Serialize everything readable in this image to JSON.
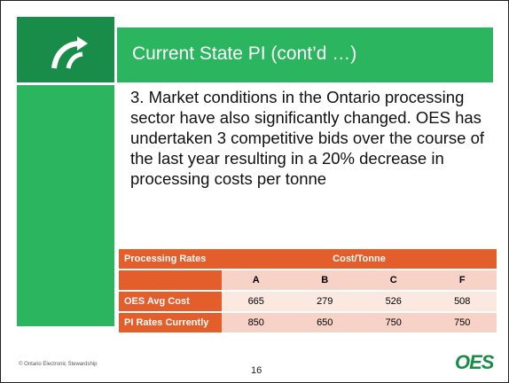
{
  "title": "Current State PI (cont’d …)",
  "body": "3. Market conditions in the Ontario processing sector have also significantly changed.  OES has undertaken 3 competitive bids over the course of the last year resulting in a 20% decrease in processing costs per tonne",
  "table": {
    "header": [
      "Processing Rates",
      "Cost/Tonne"
    ],
    "columns": [
      "A",
      "B",
      "C",
      "F"
    ],
    "rows": [
      {
        "label": "OES Avg Cost",
        "values": [
          665,
          279,
          526,
          508
        ]
      },
      {
        "label": "PI Rates Currently",
        "values": [
          850,
          650,
          750,
          750
        ]
      }
    ]
  },
  "footer": "© Ontario Electronic Stewardship",
  "page_number": 16,
  "logo": "OES"
}
